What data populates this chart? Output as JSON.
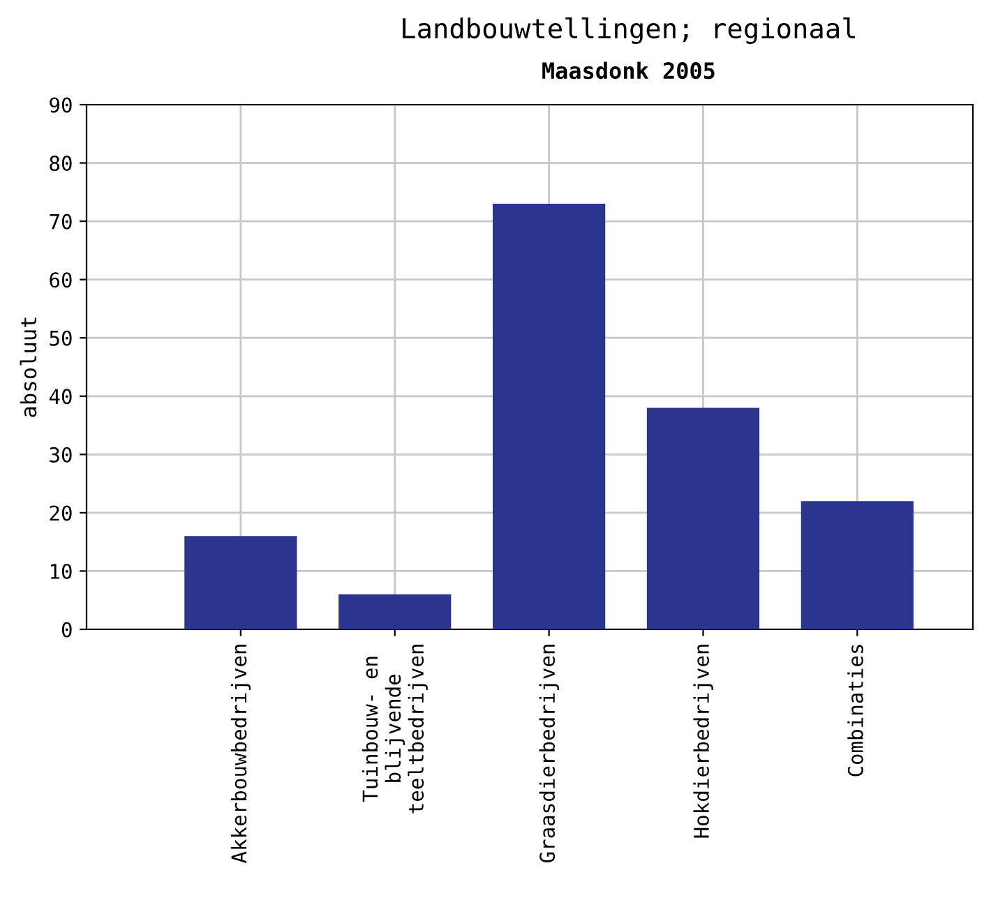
{
  "chart_data": {
    "type": "bar",
    "title": "Landbouwtellingen; regionaal",
    "subtitle": "Maasdonk 2005",
    "ylabel": "absoluut",
    "categories": [
      "Akkerbouwbedrijven",
      "Tuinbouw- en\nblijvende\nteeltbedrijven",
      "Graasdierbedrijven",
      "Hokdierbedrijven",
      "Combinaties"
    ],
    "values": [
      16,
      6,
      73,
      38,
      22
    ],
    "color": "#2b3590",
    "ylim": [
      0,
      90
    ],
    "yticks": [
      0,
      10,
      20,
      30,
      40,
      50,
      60,
      70,
      80,
      90
    ],
    "grid": true
  }
}
